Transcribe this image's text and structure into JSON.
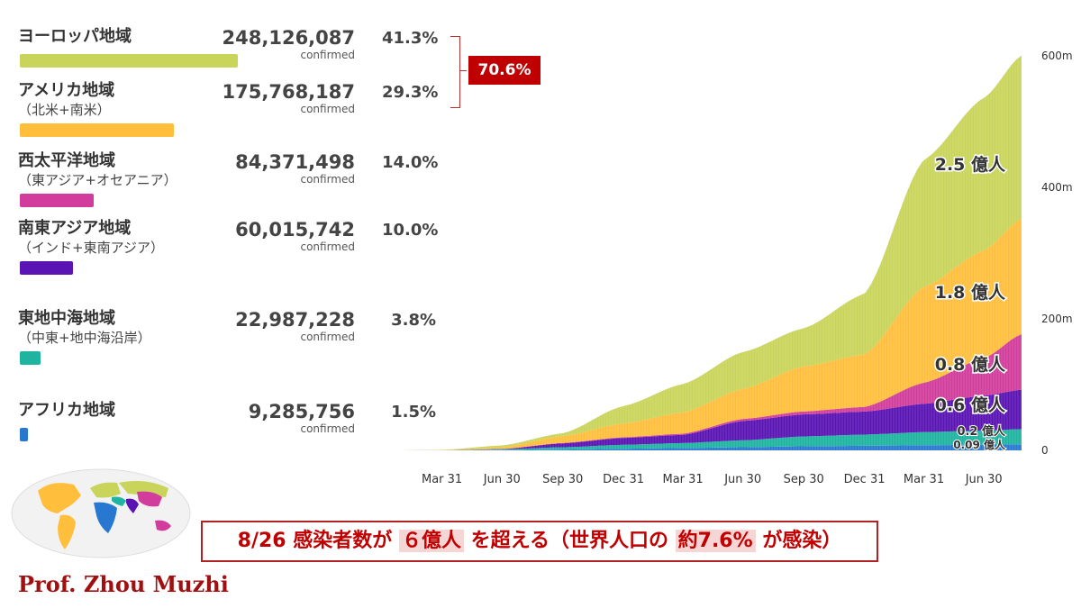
{
  "regions": [
    {
      "name": "ヨーロッパ地域",
      "sub": "",
      "count": "248,126,087",
      "count_label": "confirmed",
      "pct": "41.3%",
      "color": "#c8d45a",
      "bar_fraction": 1.0
    },
    {
      "name": "アメリカ地域",
      "sub": "（北米+南米）",
      "count": "175,768,187",
      "count_label": "confirmed",
      "pct": "29.3%",
      "color": "#ffbf3c",
      "bar_fraction": 0.708
    },
    {
      "name": "西太平洋地域",
      "sub": "（東アジア+オセアニア）",
      "count": "84,371,498",
      "count_label": "confirmed",
      "pct": "14.0%",
      "color": "#d23c9c",
      "bar_fraction": 0.34
    },
    {
      "name": "南東アジア地域",
      "sub": "（インド+東南アジア）",
      "count": "60,015,742",
      "count_label": "confirmed",
      "pct": "10.0%",
      "color": "#5a14b4",
      "bar_fraction": 0.242
    },
    {
      "name": "東地中海地域",
      "sub": "（中東+地中海沿岸）",
      "count": "22,987,228",
      "count_label": "confirmed",
      "pct": "3.8%",
      "color": "#1eb4a0",
      "bar_fraction": 0.093
    },
    {
      "name": "アフリカ地域",
      "sub": "",
      "count": "9,285,756",
      "count_label": "confirmed",
      "pct": "1.5%",
      "color": "#2878d2",
      "bar_fraction": 0.037
    }
  ],
  "combined_pct": "70.6%",
  "banner": {
    "p1": "8/26 感染者数が",
    "h1": "６億人",
    "p2": "を超える（世界人口の",
    "h2": "約7.6%",
    "p3": "が感染）"
  },
  "author": "Prof. Zhou Muzhi",
  "chart_data": {
    "type": "area",
    "stacked": true,
    "x": [
      "2020-03-31",
      "2020-06-30",
      "2020-09-30",
      "2020-12-31",
      "2021-03-31",
      "2021-06-30",
      "2021-09-30",
      "2021-12-31",
      "2022-03-31",
      "2022-06-30",
      "2022-08-26"
    ],
    "xtick_labels": [
      "Mar 31",
      "Jun 30",
      "Sep 30",
      "Dec 31",
      "Mar 31",
      "Jun 30",
      "Sep 30",
      "Dec 31",
      "Mar 31",
      "Jun 30"
    ],
    "ylim": [
      0,
      600
    ],
    "ytick_labels": [
      "0",
      "200m",
      "400m",
      "600m"
    ],
    "ytick_values": [
      0,
      200,
      400,
      600
    ],
    "series": [
      {
        "values": [
          0.01,
          0.3,
          1.2,
          2.5,
          3.6,
          4.8,
          6.2,
          7.0,
          7.8,
          8.6,
          9.3
        ],
        "color": "#2878d2",
        "end_label": "0.09 億人"
      },
      {
        "values": [
          0.05,
          1.2,
          3.5,
          6.0,
          7.5,
          10.5,
          15.0,
          17.0,
          20.0,
          21.5,
          23.0
        ],
        "color": "#1eb4a0",
        "end_label": "0.2 億人"
      },
      {
        "values": [
          0.01,
          0.5,
          6.0,
          10.5,
          12.5,
          29.5,
          33.5,
          35.0,
          43.0,
          53.0,
          60.0
        ],
        "color": "#5a14b4",
        "end_label": "0.6 億人"
      },
      {
        "values": [
          0.1,
          0.3,
          0.7,
          1.0,
          1.8,
          3.0,
          4.5,
          7.0,
          32.0,
          57.0,
          84.4
        ],
        "color": "#d23c9c",
        "end_label": "0.8 億人"
      },
      {
        "values": [
          0.2,
          2.6,
          10.3,
          21.0,
          32.4,
          45.8,
          68.5,
          80.0,
          146.0,
          164.0,
          175.8
        ],
        "color": "#ffbf3c",
        "end_label": "1.8 億人"
      },
      {
        "values": [
          0.4,
          2.6,
          4.4,
          26.4,
          43.0,
          56.0,
          58.0,
          92.0,
          193.0,
          232.0,
          248.1
        ],
        "color": "#c8d45a",
        "end_label": "2.5 億人"
      }
    ]
  }
}
